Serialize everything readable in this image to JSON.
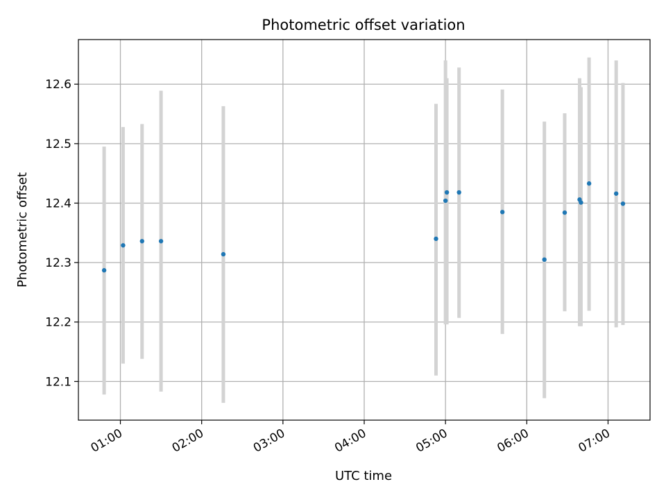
{
  "chart_data": {
    "type": "scatter",
    "title": "Photometric offset variation",
    "xlabel": "UTC time",
    "ylabel": "Photometric offset",
    "xlim": [
      "00:29",
      "07:31"
    ],
    "ylim": [
      12.035,
      12.675
    ],
    "x_ticks": [
      "01:00",
      "02:00",
      "03:00",
      "04:00",
      "05:00",
      "06:00",
      "07:00"
    ],
    "y_ticks": [
      "12.1",
      "12.2",
      "12.3",
      "12.4",
      "12.5",
      "12.6"
    ],
    "grid": true,
    "colors": {
      "point": "#1f77b4",
      "errorbar": "#d3d3d3",
      "grid": "#b0b0b0"
    },
    "points": [
      {
        "x": "00:48",
        "y": 12.287,
        "y_low": 12.078,
        "y_high": 12.495
      },
      {
        "x": "01:02",
        "y": 12.329,
        "y_low": 12.13,
        "y_high": 12.528
      },
      {
        "x": "01:16",
        "y": 12.336,
        "y_low": 12.138,
        "y_high": 12.533
      },
      {
        "x": "01:30",
        "y": 12.336,
        "y_low": 12.083,
        "y_high": 12.589
      },
      {
        "x": "02:16",
        "y": 12.314,
        "y_low": 12.064,
        "y_high": 12.563
      },
      {
        "x": "04:53",
        "y": 12.34,
        "y_low": 12.11,
        "y_high": 12.567
      },
      {
        "x": "05:00",
        "y": 12.404,
        "y_low": 12.196,
        "y_high": 12.64
      },
      {
        "x": "05:01",
        "y": 12.418,
        "y_low": 12.196,
        "y_high": 12.61
      },
      {
        "x": "05:10",
        "y": 12.418,
        "y_low": 12.207,
        "y_high": 12.628
      },
      {
        "x": "05:42",
        "y": 12.385,
        "y_low": 12.18,
        "y_high": 12.591
      },
      {
        "x": "06:13",
        "y": 12.305,
        "y_low": 12.072,
        "y_high": 12.537
      },
      {
        "x": "06:28",
        "y": 12.384,
        "y_low": 12.218,
        "y_high": 12.551
      },
      {
        "x": "06:39",
        "y": 12.406,
        "y_low": 12.193,
        "y_high": 12.61
      },
      {
        "x": "06:40",
        "y": 12.401,
        "y_low": 12.193,
        "y_high": 12.595
      },
      {
        "x": "06:46",
        "y": 12.433,
        "y_low": 12.219,
        "y_high": 12.645
      },
      {
        "x": "07:06",
        "y": 12.416,
        "y_low": 12.191,
        "y_high": 12.64
      },
      {
        "x": "07:11",
        "y": 12.399,
        "y_low": 12.195,
        "y_high": 12.602
      }
    ]
  }
}
